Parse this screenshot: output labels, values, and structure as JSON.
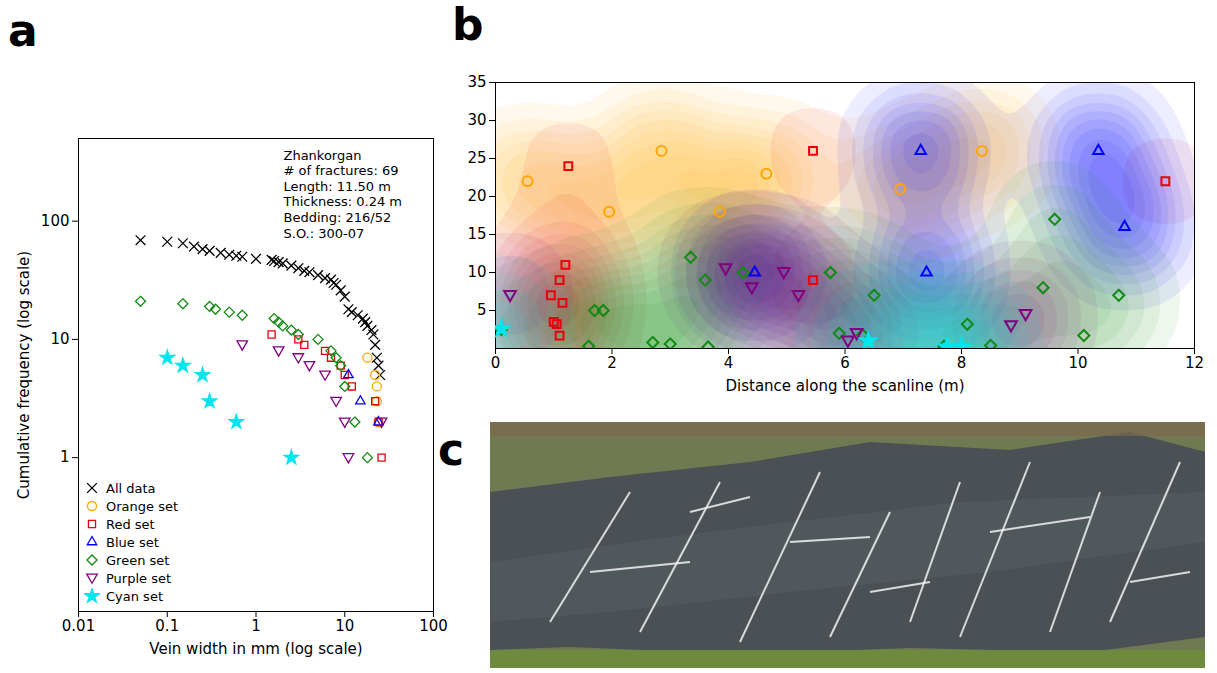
{
  "chart_data": [
    {
      "panel_label": "a",
      "type": "scatter",
      "log": true,
      "grid": false,
      "legend": "bottom-left",
      "x_label": "Vein width in mm (log scale)",
      "y_label": "Cumulative frequency (log scale)",
      "xlim": [
        0.01,
        100
      ],
      "xticks": [
        0.01,
        0.1,
        1,
        10,
        100
      ],
      "ylim": [
        0.05,
        500
      ],
      "yticks": [
        1,
        10,
        100
      ],
      "annotations": [
        "Zhankorgan",
        "# of fractures: 69",
        "Length: 11.50 m",
        "Thickness: 0.24 m",
        "Bedding: 216/52",
        "S.O.: 300-07"
      ],
      "series": [
        {
          "name": "All data",
          "color": "#000000",
          "marker": "times",
          "x": [
            0.05,
            0.1,
            0.15,
            0.2,
            0.25,
            0.3,
            0.4,
            0.5,
            0.6,
            0.7,
            1.0,
            1.5,
            1.6,
            1.8,
            2.0,
            2.5,
            3.0,
            3.5,
            4.0,
            5.0,
            6.0,
            7.0,
            7.5,
            8.0,
            9.0,
            10,
            11,
            12,
            14,
            16,
            17,
            18,
            20,
            21,
            22,
            23,
            24,
            25
          ],
          "values": [
            69,
            67,
            65,
            61,
            58,
            56,
            54,
            52,
            51,
            50,
            48,
            47,
            46,
            45,
            44,
            42,
            40,
            38,
            37,
            35,
            33,
            32,
            30,
            29,
            26,
            23,
            18,
            17,
            16,
            15,
            14,
            13,
            12,
            11,
            9,
            7,
            6,
            5
          ]
        },
        {
          "name": "Orange set",
          "color": "#ffa500",
          "marker": "circle",
          "x": [
            18,
            22,
            23,
            23,
            24
          ],
          "values": [
            7,
            5,
            4,
            3,
            2
          ]
        },
        {
          "name": "Red set",
          "color": "#e8000b",
          "marker": "square",
          "x": [
            1.5,
            3,
            3.5,
            6,
            7,
            9,
            10,
            12,
            22,
            24,
            26
          ],
          "values": [
            11,
            10,
            9,
            8,
            7,
            6,
            5,
            4,
            3,
            2,
            1
          ]
        },
        {
          "name": "Blue set",
          "color": "#0000ff",
          "marker": "triangle",
          "x": [
            11,
            15,
            24
          ],
          "values": [
            5,
            3,
            2
          ]
        },
        {
          "name": "Green set",
          "color": "#138a13",
          "marker": "diamond",
          "x": [
            0.05,
            0.15,
            0.3,
            0.35,
            0.5,
            0.7,
            1.6,
            1.8,
            2,
            2.5,
            3,
            5,
            7,
            8,
            9,
            10,
            13,
            18
          ],
          "values": [
            21,
            20,
            19,
            18,
            17,
            16,
            15,
            14,
            13,
            12,
            11,
            10,
            8,
            7,
            6,
            4,
            2,
            1
          ]
        },
        {
          "name": "Purple set",
          "color": "#800080",
          "marker": "triangle-down",
          "x": [
            0.7,
            1.8,
            3,
            4,
            6,
            8,
            10,
            11,
            26
          ],
          "values": [
            9,
            8,
            7,
            6,
            5,
            3,
            2,
            1,
            2
          ]
        },
        {
          "name": "Cyan set",
          "color": "#00e5ee",
          "marker": "star",
          "x": [
            0.1,
            0.15,
            0.25,
            0.3,
            0.6,
            2.5
          ],
          "values": [
            7,
            6,
            5,
            3,
            2,
            1
          ]
        }
      ]
    },
    {
      "panel_label": "b",
      "type": "scatter",
      "grid": false,
      "x_label": "Distance along the scanline (m)",
      "xlim": [
        0,
        12
      ],
      "xticks": [
        0,
        2,
        4,
        6,
        8,
        10,
        12
      ],
      "ylim": [
        0,
        35
      ],
      "yticks": [
        5,
        10,
        15,
        20,
        25,
        30,
        35
      ],
      "series": [
        {
          "color": "#ffa500",
          "marker": "circle",
          "x": [
            0.55,
            1.95,
            2.85,
            3.85,
            4.65,
            6.95,
            8.35
          ],
          "values": [
            22,
            18,
            26,
            18,
            23,
            21,
            26
          ]
        },
        {
          "color": "#e8000b",
          "marker": "square",
          "x": [
            1.25,
            5.45,
            11.5,
            1.2,
            0.95,
            1.1,
            1.15,
            1.0,
            1.05,
            1.1,
            5.45
          ],
          "values": [
            24,
            26,
            22,
            11,
            7,
            9,
            6,
            3.5,
            3.2,
            1.7,
            9
          ]
        },
        {
          "color": "#0000ff",
          "marker": "triangle",
          "x": [
            7.3,
            10.35,
            10.8,
            7.4,
            4.45
          ],
          "values": [
            26,
            26,
            16,
            10,
            10
          ]
        },
        {
          "color": "#138a13",
          "marker": "diamond",
          "x": [
            0.1,
            1.6,
            1.7,
            1.85,
            2.7,
            3.0,
            3.65,
            3.35,
            3.6,
            4.25,
            5.75,
            5.9,
            6.3,
            6.5,
            7.7,
            8.1,
            8.5,
            9.4,
            9.6,
            10.1,
            10.7
          ],
          "values": [
            2.5,
            0.3,
            5,
            5,
            0.8,
            0.6,
            0.2,
            12,
            9,
            10,
            10,
            2,
            1.8,
            7,
            0.3,
            3.2,
            0.4,
            8,
            17,
            1.7,
            7
          ]
        },
        {
          "color": "#800080",
          "marker": "triangle-down",
          "x": [
            0.25,
            3.95,
            4.4,
            4.95,
            5.2,
            6.05,
            6.2,
            8.85,
            9.1
          ],
          "values": [
            7,
            10.5,
            8,
            10,
            7,
            1,
            2,
            3,
            4.5
          ]
        },
        {
          "color": "#00e5ee",
          "marker": "star",
          "x": [
            0.1,
            6.4,
            7.75,
            8.0
          ],
          "values": [
            2.6,
            1.0,
            0.2,
            0.2
          ]
        }
      ]
    },
    {
      "panel_label": "c",
      "type": "image"
    }
  ]
}
